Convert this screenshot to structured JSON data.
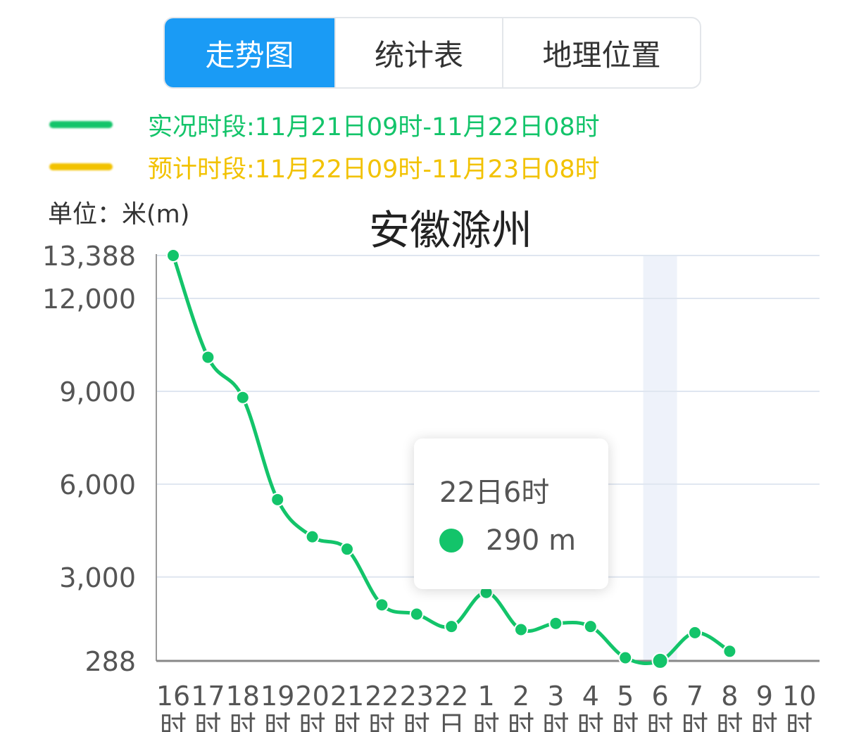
{
  "tabs": [
    {
      "label": "走势图",
      "active": true
    },
    {
      "label": "统计表",
      "active": false
    },
    {
      "label": "地理位置",
      "active": false
    }
  ],
  "legend": [
    {
      "label": "实况时段:11月21日09时-11月22日08时",
      "color": "#13c46a"
    },
    {
      "label": "预计时段:11月22日09时-11月23日08时",
      "color": "#f2c200"
    }
  ],
  "unit_label": "单位：米(m)",
  "tooltip": {
    "title": "22日6时",
    "value": "290 m",
    "dot_color": "#13c46a"
  },
  "colors": {
    "accent": "#1a9bf5",
    "observed": "#13c46a",
    "forecast": "#f2c200",
    "grid": "#dfe6f0",
    "highlight_band": "#eef2fa"
  },
  "chart_data": {
    "type": "line",
    "title": "安徽滁州",
    "ylabel": "米(m)",
    "y_ticks": [
      288,
      3000,
      6000,
      9000,
      12000,
      13388
    ],
    "y_tick_labels": [
      "288",
      "3,000",
      "6,000",
      "9,000",
      "12,000",
      "13,388"
    ],
    "ylim": [
      288,
      13388
    ],
    "x_labels": [
      [
        "16",
        "时"
      ],
      [
        "17",
        "时"
      ],
      [
        "18",
        "时"
      ],
      [
        "19",
        "时"
      ],
      [
        "20",
        "时"
      ],
      [
        "21",
        "时"
      ],
      [
        "22",
        "时"
      ],
      [
        "23",
        "时"
      ],
      [
        "22",
        "日"
      ],
      [
        "1",
        "时"
      ],
      [
        "2",
        "时"
      ],
      [
        "3",
        "时"
      ],
      [
        "4",
        "时"
      ],
      [
        "5",
        "时"
      ],
      [
        "6",
        "时"
      ],
      [
        "7",
        "时"
      ],
      [
        "8",
        "时"
      ],
      [
        "9",
        "时"
      ],
      [
        "10",
        "时"
      ]
    ],
    "highlight_index": 14,
    "grid": true,
    "series": [
      {
        "values": [
          13388,
          10100,
          8800,
          5500,
          4300,
          3900,
          2100,
          1800,
          1400,
          2500,
          1300,
          1500,
          1400,
          390,
          290,
          1200,
          600,
          null,
          null
        ]
      }
    ]
  }
}
